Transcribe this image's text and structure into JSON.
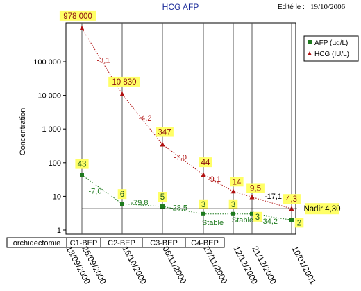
{
  "header": {
    "title": "HCG AFP",
    "edit_label": "Edité le :",
    "edit_date": "19/10/2006"
  },
  "chart_data": {
    "type": "line",
    "y_scale": "log",
    "ylabel": "Concentration",
    "ylim": [
      1,
      1000000
    ],
    "y_ticks": [
      "1",
      "10",
      "100",
      "1 000",
      "10 000",
      "100 000"
    ],
    "x": [
      "18/09/2000",
      "26/09/2000",
      "16/10/2000",
      "06/11/2000",
      "27/11/2000",
      "12/12/2000",
      "21/12/2000",
      "10/01/2001"
    ],
    "grid": true,
    "legend_position": "top-right",
    "series": [
      {
        "name": "AFP (µg/L)",
        "color": "#1e7a1e",
        "marker": "square",
        "x": [
          "26/09/2000",
          "16/10/2000",
          "06/11/2000",
          "27/11/2000",
          "12/12/2000",
          "21/12/2000",
          "10/01/2001"
        ],
        "values": [
          43,
          6,
          5,
          3,
          3,
          3,
          2
        ],
        "point_labels": [
          "43",
          "6",
          "5",
          "3",
          "3",
          "3",
          "2"
        ],
        "segment_labels": [
          "-7,0",
          "-79,8",
          "-28,5",
          "Stable",
          "Stable",
          "-34,2"
        ]
      },
      {
        "name": "HCG (IU/L)",
        "color": "#b01010",
        "marker": "triangle",
        "x": [
          "26/09/2000",
          "16/10/2000",
          "06/11/2000",
          "27/11/2000",
          "12/12/2000",
          "21/12/2000",
          "10/01/2001"
        ],
        "values": [
          978000,
          10830,
          347,
          44,
          14,
          9.5,
          4.3
        ],
        "point_labels": [
          "978 000",
          "10 830",
          "347",
          "44",
          "14",
          "9,5",
          "4,3"
        ],
        "segment_labels": [
          "-3,1",
          "-4,2",
          "-7,0",
          "-9,1",
          "",
          "-17,1"
        ]
      }
    ],
    "nadir": {
      "label": "Nadir 4,30",
      "value": 4.3
    },
    "treatments": [
      "orchidectomie",
      "C1-BEP",
      "C2-BEP",
      "C3-BEP",
      "C4-BEP"
    ]
  }
}
